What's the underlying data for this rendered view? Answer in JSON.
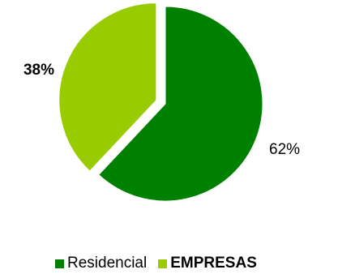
{
  "chart_data": {
    "type": "pie",
    "title": "",
    "slices": [
      {
        "name": "Residencial",
        "value": 62,
        "label": "62%",
        "color": "#008000",
        "label_bold": false,
        "exploded": false
      },
      {
        "name": "EMPRESAS",
        "value": 38,
        "label": "38%",
        "color": "#99CC00",
        "label_bold": true,
        "exploded": true
      }
    ],
    "legend_position": "bottom"
  }
}
